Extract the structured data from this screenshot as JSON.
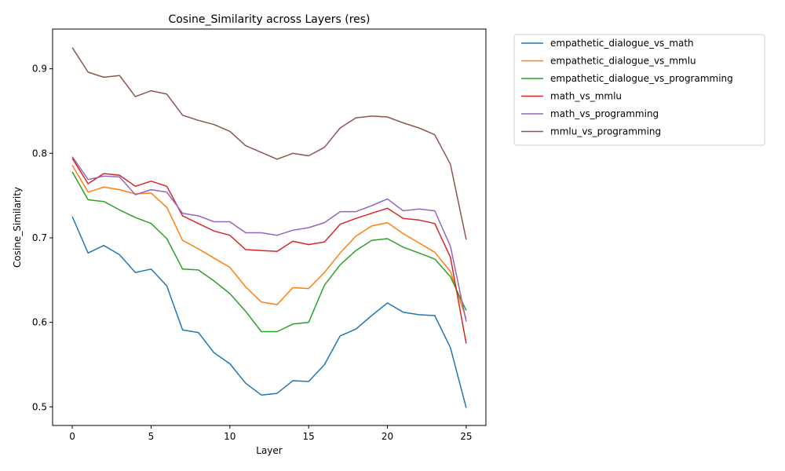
{
  "chart_data": {
    "type": "line",
    "title": "Cosine_Similarity across Layers (res)",
    "xlabel": "Layer",
    "ylabel": "Cosine_Similarity",
    "xlim": [
      -1.25,
      26.25
    ],
    "ylim": [
      0.478,
      0.947
    ],
    "xticks": [
      0,
      5,
      10,
      15,
      20,
      25
    ],
    "yticks": [
      0.5,
      0.6,
      0.7,
      0.8,
      0.9
    ],
    "ytick_labels": [
      "0.5",
      "0.6",
      "0.7",
      "0.8",
      "0.9"
    ],
    "grid": false,
    "legend_position": "outside-upper-right",
    "x": [
      0,
      1,
      2,
      3,
      4,
      5,
      6,
      7,
      8,
      9,
      10,
      11,
      12,
      13,
      14,
      15,
      16,
      17,
      18,
      19,
      20,
      21,
      22,
      23,
      24,
      25
    ],
    "series": [
      {
        "name": "empathetic_dialogue_vs_math",
        "color": "#1f77b4",
        "values": [
          0.725,
          0.682,
          0.691,
          0.68,
          0.659,
          0.663,
          0.643,
          0.591,
          0.588,
          0.564,
          0.551,
          0.528,
          0.514,
          0.516,
          0.531,
          0.53,
          0.55,
          0.584,
          0.592,
          0.608,
          0.623,
          0.612,
          0.609,
          0.608,
          0.57,
          0.499
        ]
      },
      {
        "name": "empathetic_dialogue_vs_mmlu",
        "color": "#ff7f0e",
        "values": [
          0.786,
          0.754,
          0.76,
          0.757,
          0.752,
          0.753,
          0.736,
          0.697,
          0.687,
          0.676,
          0.665,
          0.642,
          0.624,
          0.621,
          0.641,
          0.64,
          0.659,
          0.682,
          0.702,
          0.714,
          0.718,
          0.705,
          0.694,
          0.683,
          0.66,
          0.604
        ]
      },
      {
        "name": "empathetic_dialogue_vs_programming",
        "color": "#2ca02c",
        "values": [
          0.778,
          0.745,
          0.743,
          0.733,
          0.724,
          0.717,
          0.699,
          0.663,
          0.662,
          0.649,
          0.634,
          0.613,
          0.589,
          0.589,
          0.598,
          0.6,
          0.644,
          0.668,
          0.685,
          0.697,
          0.699,
          0.689,
          0.682,
          0.675,
          0.654,
          0.614
        ]
      },
      {
        "name": "math_vs_mmlu",
        "color": "#d62728",
        "values": [
          0.794,
          0.764,
          0.776,
          0.774,
          0.761,
          0.767,
          0.761,
          0.726,
          0.717,
          0.708,
          0.703,
          0.686,
          0.685,
          0.684,
          0.696,
          0.692,
          0.695,
          0.716,
          0.723,
          0.729,
          0.735,
          0.723,
          0.721,
          0.717,
          0.677,
          0.575
        ]
      },
      {
        "name": "math_vs_programming",
        "color": "#9467bd",
        "values": [
          0.796,
          0.769,
          0.773,
          0.772,
          0.751,
          0.757,
          0.754,
          0.729,
          0.726,
          0.719,
          0.719,
          0.706,
          0.706,
          0.703,
          0.709,
          0.712,
          0.718,
          0.731,
          0.731,
          0.738,
          0.746,
          0.732,
          0.734,
          0.732,
          0.69,
          0.601
        ]
      },
      {
        "name": "mmlu_vs_programming",
        "color": "#8c564b",
        "values": [
          0.925,
          0.896,
          0.89,
          0.892,
          0.867,
          0.874,
          0.87,
          0.845,
          0.839,
          0.834,
          0.826,
          0.809,
          0.801,
          0.793,
          0.8,
          0.797,
          0.807,
          0.83,
          0.842,
          0.844,
          0.843,
          0.836,
          0.83,
          0.822,
          0.787,
          0.698
        ]
      }
    ]
  }
}
